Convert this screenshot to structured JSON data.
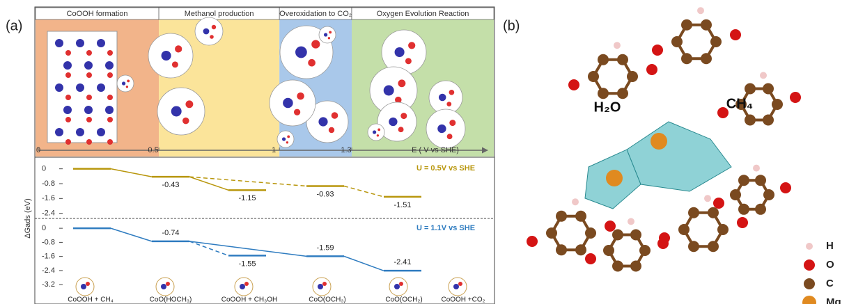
{
  "panel_a": {
    "label": "(a)",
    "stages": [
      "CoOOH formation",
      "Methanol production",
      "Overoxidation to CO₂",
      "Oxygen Evolution Reaction"
    ],
    "potential_axis": {
      "label": "E ( V vs SHE)",
      "xlim": [
        0,
        1.3
      ],
      "xticks": [
        0,
        0.5,
        1,
        1.3
      ]
    },
    "energy_axis_label": "ΔGads (eV)",
    "energy_panels": [
      {
        "title": "U = 0.5V vs SHE",
        "color": "#b8960c",
        "ylim": [
          0.4,
          -2.6
        ],
        "yticks": [
          0,
          -0.8,
          -1.6,
          -2.4
        ],
        "levels": [
          0,
          -0.43,
          -1.15,
          -0.93,
          -1.51
        ],
        "value_labels": [
          null,
          "-0.43",
          "-1.15",
          "-0.93",
          "-1.51"
        ]
      },
      {
        "title": "U = 1.1V vs SHE",
        "color": "#2f7cc0",
        "ylim": [
          0.4,
          -4.3
        ],
        "yticks": [
          0,
          -0.8,
          -1.6,
          -2.4,
          -3.2
        ],
        "levels": [
          0,
          -0.74,
          -1.55,
          -1.59,
          -2.41
        ],
        "value_labels": [
          null,
          "-0.74",
          "-1.55",
          "-1.59",
          "-2.41"
        ]
      }
    ],
    "species": [
      "CoOOH + CH₄",
      "CoO(HOCH₃)",
      "CoOOH + CH₃OH",
      "CoO(OCH₃)",
      "CoO(OCH₂)",
      "CoOOH +CO₂"
    ]
  },
  "panel_b": {
    "label": "(b)",
    "annotations": [
      "H₂O",
      "CH₄"
    ],
    "legend": [
      "H",
      "O",
      "C",
      "Mg"
    ]
  }
}
